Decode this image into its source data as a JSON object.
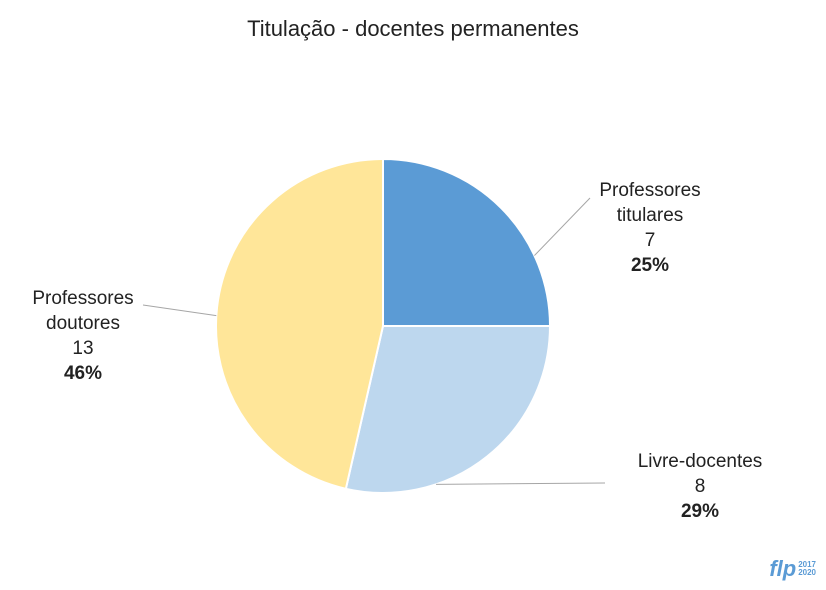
{
  "chart_data": {
    "type": "pie",
    "title": "Titulação - docentes permanentes",
    "categories": [
      "Professores titulares",
      "Livre-docentes",
      "Professores doutores"
    ],
    "values": [
      7,
      8,
      13
    ],
    "percent_labels": [
      "25%",
      "29%",
      "46%"
    ],
    "colors": [
      "#5b9bd5",
      "#bdd7ee",
      "#ffe699"
    ]
  },
  "logo": {
    "text": "flp",
    "years": [
      "2017",
      "2020"
    ]
  }
}
